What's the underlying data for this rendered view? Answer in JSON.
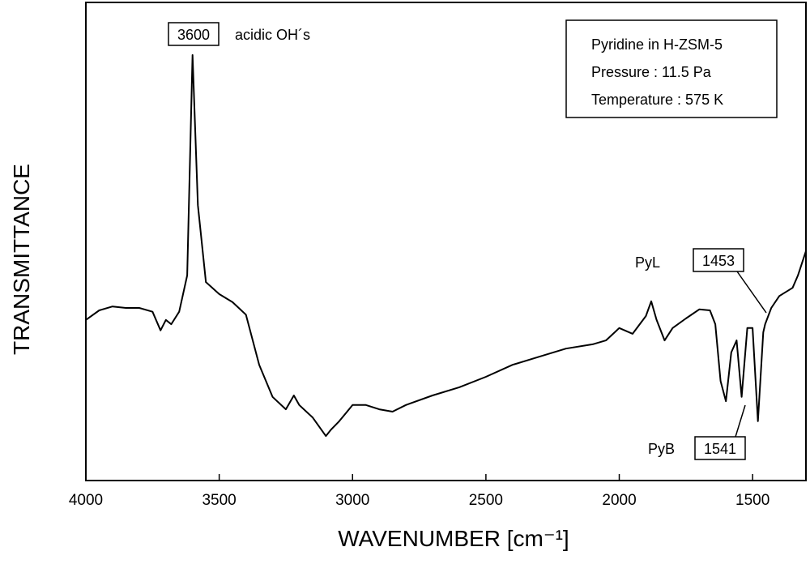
{
  "chart_data": {
    "type": "line",
    "x_label": "WAVENUMBER [cm⁻¹]",
    "y_label": "TRANSMITTANCE",
    "info_box": [
      "Pyridine in H-ZSM-5",
      "Pressure : 11.5 Pa",
      "Temperature : 575 K"
    ],
    "annotations": [
      "3600",
      "acidic OH´s",
      "PyL",
      "1453",
      "PyB",
      "1541"
    ],
    "x": [
      4000,
      3950,
      3900,
      3850,
      3800,
      3750,
      3720,
      3700,
      3680,
      3650,
      3620,
      3600,
      3580,
      3550,
      3500,
      3450,
      3400,
      3350,
      3300,
      3250,
      3220,
      3200,
      3150,
      3100,
      3080,
      3050,
      3000,
      2950,
      2900,
      2850,
      2800,
      2700,
      2600,
      2500,
      2400,
      2300,
      2200,
      2100,
      2050,
      2000,
      1950,
      1900,
      1880,
      1860,
      1830,
      1800,
      1750,
      1700,
      1660,
      1640,
      1620,
      1600,
      1580,
      1560,
      1541,
      1520,
      1500,
      1480,
      1460,
      1453,
      1430,
      1400,
      1350,
      1330,
      1300
    ],
    "series": [
      {
        "color": "#000000",
        "values": [
          33.6,
          35.6,
          36.4,
          36.1,
          36.1,
          35.3,
          31.4,
          33.6,
          32.7,
          35.3,
          42.9,
          89.0,
          57.6,
          41.5,
          39.0,
          37.3,
          34.7,
          24.2,
          17.5,
          14.9,
          17.8,
          15.8,
          13.2,
          9.3,
          10.7,
          12.4,
          15.8,
          15.8,
          14.9,
          14.4,
          15.8,
          17.8,
          19.5,
          21.7,
          24.2,
          25.9,
          27.6,
          28.5,
          29.3,
          31.9,
          30.7,
          34.4,
          37.5,
          33.6,
          29.3,
          31.9,
          33.9,
          35.8,
          35.6,
          32.7,
          20.8,
          16.6,
          26.8,
          29.3,
          17.5,
          31.9,
          31.9,
          12.4,
          31.0,
          32.7,
          36.1,
          38.6,
          40.3,
          42.9,
          48.0
        ]
      }
    ],
    "xlim": [
      4000,
      1300
    ],
    "ylim": [
      0,
      100
    ],
    "xticks": [
      4000,
      3500,
      3000,
      2500,
      2000,
      1500
    ]
  }
}
